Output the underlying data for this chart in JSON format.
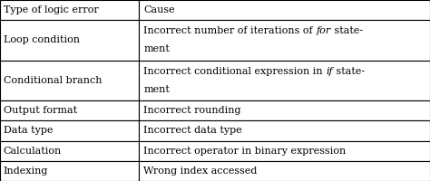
{
  "col1_header": "Type of logic error",
  "col2_header": "Cause",
  "rows": [
    {
      "type": "Loop condition",
      "cause_parts": [
        {
          "text": "Incorrect number of iterations of ",
          "italic": false
        },
        {
          "text": "for",
          "italic": true
        },
        {
          "text": " state-",
          "italic": false
        }
      ],
      "cause_line2": "ment",
      "double_height": true
    },
    {
      "type": "Conditional branch",
      "cause_parts": [
        {
          "text": "Incorrect conditional expression in ",
          "italic": false
        },
        {
          "text": "if",
          "italic": true
        },
        {
          "text": " state-",
          "italic": false
        }
      ],
      "cause_line2": "ment",
      "double_height": true
    },
    {
      "type": "Output format",
      "cause_parts": [
        {
          "text": "Incorrect rounding",
          "italic": false
        }
      ],
      "cause_line2": "",
      "double_height": false
    },
    {
      "type": "Data type",
      "cause_parts": [
        {
          "text": "Incorrect data type",
          "italic": false
        }
      ],
      "cause_line2": "",
      "double_height": false
    },
    {
      "type": "Calculation",
      "cause_parts": [
        {
          "text": "Incorrect operator in binary expression",
          "italic": false
        }
      ],
      "cause_line2": "",
      "double_height": false
    },
    {
      "type": "Indexing",
      "cause_parts": [
        {
          "text": "Wrong index accessed",
          "italic": false
        }
      ],
      "cause_line2": "",
      "double_height": false
    }
  ],
  "col_split": 0.322,
  "bg_color": "#ffffff",
  "line_color": "#000000",
  "font_size": 8.0,
  "figwidth": 4.74,
  "figheight": 2.0,
  "dpi": 100
}
